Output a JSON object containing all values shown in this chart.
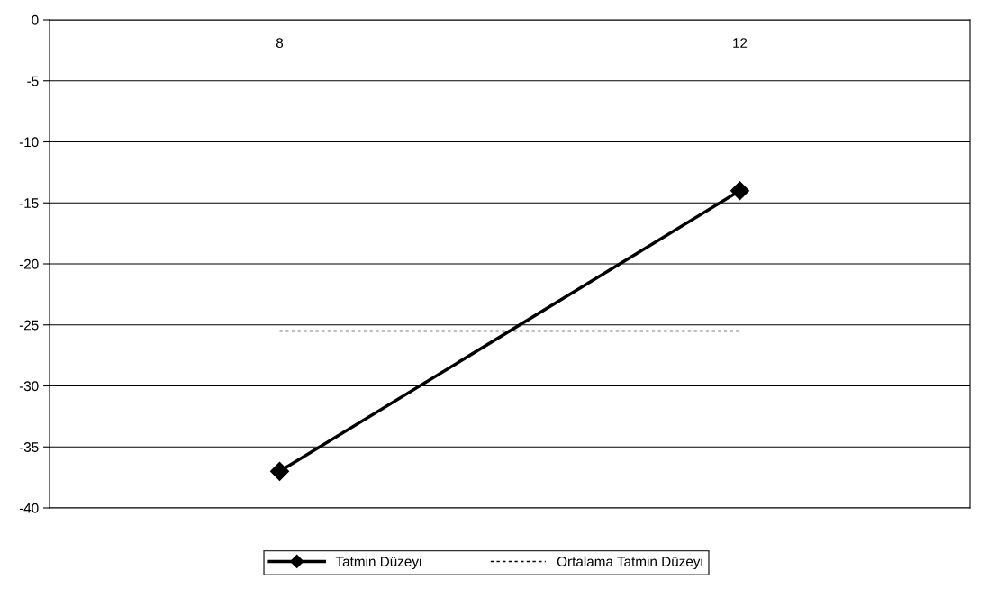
{
  "chart_data": {
    "type": "line",
    "categories": [
      "8",
      "12"
    ],
    "series": [
      {
        "name": "Tatmin Düzeyi",
        "color": "#000000",
        "values": [
          -37,
          -14
        ],
        "marker": "diamond",
        "line_style": "solid"
      },
      {
        "name": "Ortalama Tatmin Düzeyi",
        "color": "#000000",
        "values": [
          -25.5,
          -25.5
        ],
        "marker": "none",
        "line_style": "dotted"
      }
    ],
    "ylim": [
      -40,
      0
    ],
    "yticks": [
      -40,
      -35,
      -30,
      -25,
      -20,
      -15,
      -10,
      -5,
      0
    ],
    "grid": "y",
    "legend": "bottom"
  }
}
